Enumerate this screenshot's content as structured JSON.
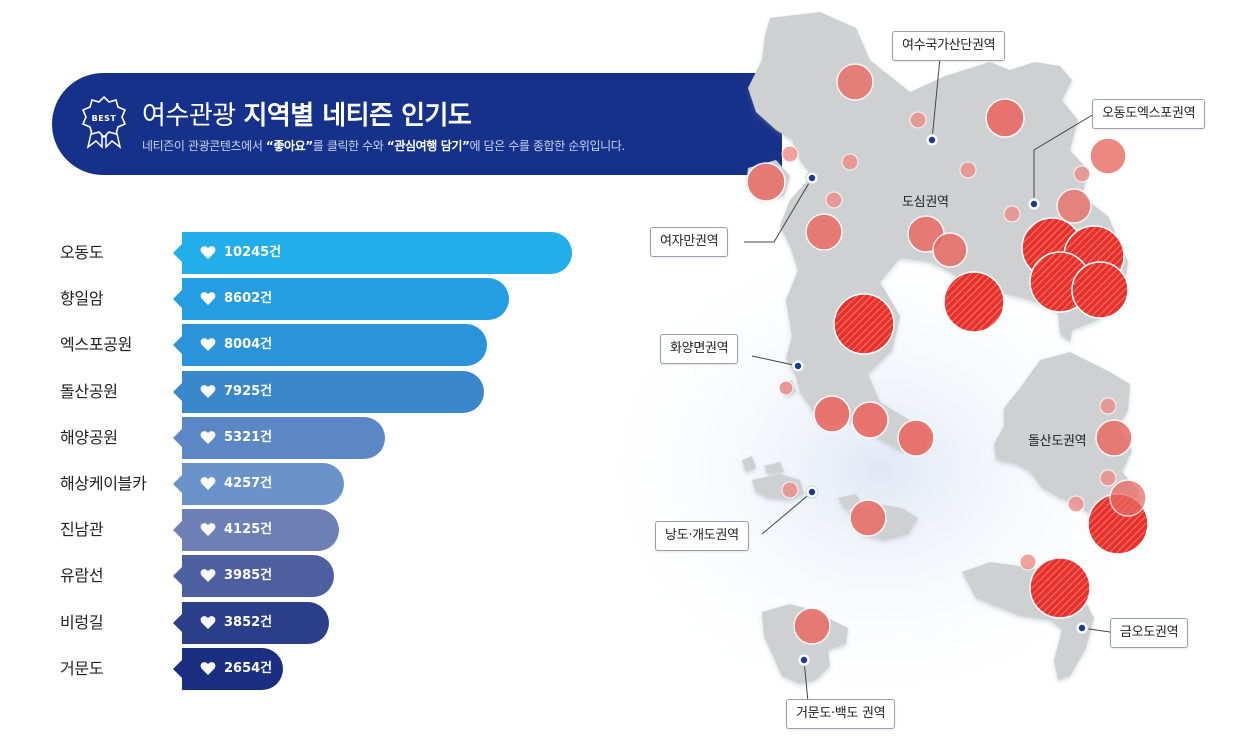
{
  "header": {
    "badge_text": "BEST",
    "title_prefix": "여수관광",
    "title_bold": "지역별 네티즌 인기도",
    "subtitle_1": "네티즌이 관광콘텐츠에서 ",
    "subtitle_bold_1": "“좋아요”",
    "subtitle_2": "를 클릭한 수와 ",
    "subtitle_bold_2": "“관심여행 담기”",
    "subtitle_3": "에 담은 수를 종합한 순위입니다."
  },
  "chart_data": {
    "type": "bar",
    "orientation": "horizontal",
    "unit": "건",
    "categories": [
      "오동도",
      "향일암",
      "엑스포공원",
      "돌산공원",
      "해양공원",
      "해상케이블카",
      "진남관",
      "유람선",
      "비렁길",
      "거문도"
    ],
    "values": [
      10245,
      8602,
      8004,
      7925,
      5321,
      4257,
      4125,
      3985,
      3852,
      2654
    ],
    "labels": [
      "10245건",
      "8602건",
      "8004건",
      "7925건",
      "5321건",
      "4257건",
      "4125건",
      "3985건",
      "3852건",
      "2654건"
    ],
    "colors": [
      "#22adeb",
      "#259de2",
      "#2b93d9",
      "#3a87cc",
      "#5b88c4",
      "#6a94c9",
      "#6e7fb5",
      "#4d5f9f",
      "#2a3e8a",
      "#1a2e82"
    ],
    "icon": "heart-icon"
  },
  "map": {
    "region_labels": [
      "도심권역",
      "돌산도권역"
    ],
    "callouts": [
      "여수국가산단권역",
      "오동도엑스포권역",
      "여자만권역",
      "화양면권역",
      "낭도·개도권역",
      "금오도권역",
      "거문도·백도 권역"
    ],
    "colors": {
      "land": "#cfd0d2",
      "hotspot": "#e8312a",
      "marker": "#1a3a8f"
    }
  }
}
